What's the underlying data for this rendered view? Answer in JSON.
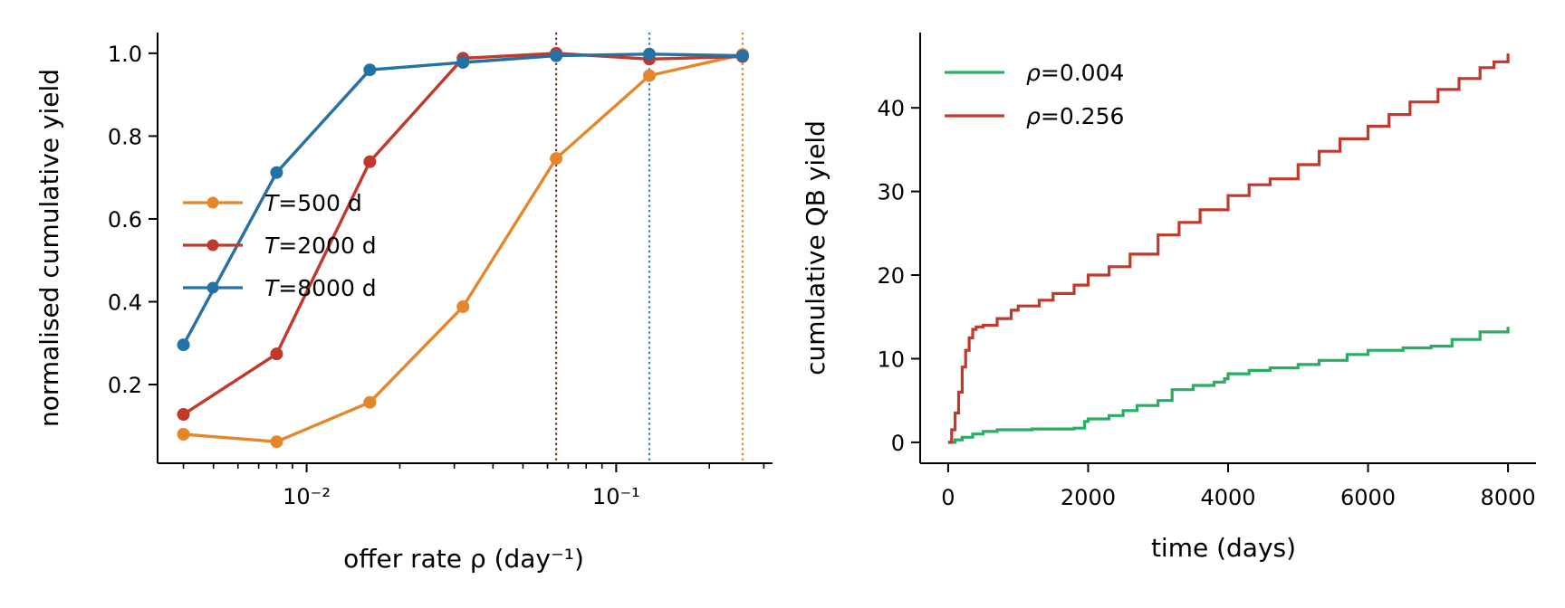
{
  "chart_data": [
    {
      "type": "line",
      "xscale": "log",
      "xlabel": "offer rate ρ (day⁻¹)",
      "ylabel": "normalised cumulative yield",
      "xlim": [
        0.0033,
        0.32
      ],
      "ylim": [
        0.01,
        1.05
      ],
      "xtick_labels": [
        {
          "value": 0.01,
          "label": "10⁻²"
        },
        {
          "value": 0.1,
          "label": "10⁻¹"
        }
      ],
      "yticks": [
        0.2,
        0.4,
        0.6,
        0.8,
        1.0
      ],
      "ytick_labels": [
        "0.2",
        "0.4",
        "0.6",
        "0.8",
        "1.0"
      ],
      "legend_position": "center-left",
      "grid": false,
      "series": [
        {
          "name": "T=500 d",
          "name_italic": "T",
          "name_rest": "=500 d",
          "color": "#e6862b",
          "x": [
            0.004,
            0.008,
            0.016,
            0.032,
            0.064,
            0.128,
            0.256
          ],
          "y": [
            0.08,
            0.062,
            0.157,
            0.388,
            0.746,
            0.946,
            0.997
          ]
        },
        {
          "name": "T=2000 d",
          "name_italic": "T",
          "name_rest": "=2000 d",
          "color": "#c0392b",
          "x": [
            0.004,
            0.008,
            0.016,
            0.032,
            0.064,
            0.128,
            0.256
          ],
          "y": [
            0.128,
            0.274,
            0.738,
            0.988,
            1.0,
            0.986,
            0.992
          ]
        },
        {
          "name": "T=8000 d",
          "name_italic": "T",
          "name_rest": "=8000 d",
          "color": "#2471a3",
          "x": [
            0.004,
            0.008,
            0.016,
            0.032,
            0.064,
            0.128,
            0.256
          ],
          "y": [
            0.296,
            0.712,
            0.96,
            0.978,
            0.994,
            0.998,
            0.994
          ]
        }
      ],
      "vlines": [
        {
          "x": 0.064,
          "color": "#8b2e1f",
          "style": "dotted"
        },
        {
          "x": 0.128,
          "color": "#2e86c1",
          "style": "dotted"
        },
        {
          "x": 0.256,
          "color": "#e6862b",
          "style": "dotted"
        }
      ]
    },
    {
      "type": "line",
      "xlabel": "time (days)",
      "ylabel": "cumulative QB yield",
      "xlim": [
        -400,
        8400
      ],
      "ylim": [
        -2.5,
        49
      ],
      "xticks": [
        0,
        2000,
        4000,
        6000,
        8000
      ],
      "xtick_labels": [
        "0",
        "2000",
        "4000",
        "6000",
        "8000"
      ],
      "yticks": [
        0,
        10,
        20,
        30,
        40
      ],
      "ytick_labels": [
        "0",
        "10",
        "20",
        "30",
        "40"
      ],
      "legend_position": "top-left",
      "grid": false,
      "series": [
        {
          "name": "ρ=0.004",
          "name_italic": "ρ",
          "name_rest": "=0.004",
          "color": "#27ae60",
          "style": "step",
          "x": [
            0,
            100,
            200,
            350,
            500,
            700,
            1000,
            1200,
            1500,
            1800,
            1950,
            2000,
            2300,
            2500,
            2700,
            3000,
            3200,
            3500,
            3800,
            3950,
            4000,
            4300,
            4600,
            5000,
            5300,
            5700,
            6000,
            6500,
            6900,
            7200,
            7600,
            8000
          ],
          "y": [
            0,
            0.3,
            0.6,
            1.0,
            1.3,
            1.5,
            1.5,
            1.6,
            1.6,
            1.7,
            2.5,
            2.8,
            3.2,
            3.8,
            4.4,
            5.0,
            6.3,
            6.8,
            7.2,
            7.6,
            8.2,
            8.6,
            8.9,
            9.3,
            9.8,
            10.5,
            11.0,
            11.3,
            11.5,
            12.3,
            13.2,
            13.8
          ]
        },
        {
          "name": "ρ=0.256",
          "name_italic": "ρ",
          "name_rest": "=0.256",
          "color": "#c0392b",
          "style": "step",
          "x": [
            0,
            50,
            100,
            150,
            200,
            250,
            300,
            350,
            400,
            500,
            700,
            900,
            1000,
            1300,
            1500,
            1800,
            2000,
            2300,
            2600,
            3000,
            3300,
            3600,
            4000,
            4300,
            4600,
            5000,
            5300,
            5600,
            6000,
            6300,
            6600,
            7000,
            7300,
            7600,
            7800,
            8000
          ],
          "y": [
            0,
            1.5,
            3.5,
            6.0,
            9.0,
            11.0,
            12.5,
            13.5,
            13.8,
            14.0,
            14.8,
            15.8,
            16.3,
            17.0,
            17.8,
            18.8,
            20.0,
            21.0,
            22.5,
            24.8,
            26.3,
            27.8,
            29.5,
            30.8,
            31.5,
            33.2,
            34.8,
            36.3,
            37.8,
            39.2,
            40.7,
            42.2,
            43.5,
            44.8,
            45.5,
            46.5
          ]
        }
      ]
    }
  ]
}
